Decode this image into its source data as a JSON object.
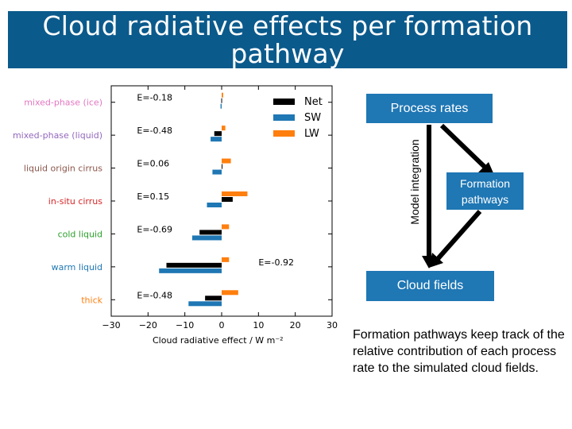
{
  "slide": {
    "title_line1": "Cloud radiative effects per formation",
    "title_line2": "pathway"
  },
  "diagram": {
    "process_rates": "Process rates",
    "formation_line1": "Formation",
    "formation_line2": "pathways",
    "cloud_fields": "Cloud fields",
    "model_integration": "Model integration",
    "description": "Formation pathways keep track of the relative contribution of each process rate to the simulated cloud fields."
  },
  "colors": {
    "title_bg": "#0b5a8c",
    "box_bg": "#1f77b4",
    "net": "#000000",
    "sw": "#1f77b4",
    "lw": "#ff7f0e"
  },
  "chart_data": {
    "type": "bar",
    "orientation": "horizontal",
    "xlabel": "Cloud radiative effect / W m⁻²",
    "xlim": [
      -30,
      30
    ],
    "xticks": [
      "−30",
      "−20",
      "−10",
      "0",
      "10",
      "20",
      "30"
    ],
    "xtick_values": [
      -30,
      -20,
      -10,
      0,
      10,
      20,
      30
    ],
    "categories": [
      "mixed-phase (ice)",
      "mixed-phase (liquid)",
      "liquid origin cirrus",
      "in-situ cirrus",
      "cold liquid",
      "warm liquid",
      "thick"
    ],
    "category_colors": [
      "#e377c2",
      "#9467bd",
      "#8c564b",
      "#d62728",
      "#2ca02c",
      "#1f77b4",
      "#ff7f0e"
    ],
    "annotations": [
      "E=-0.18",
      "E=-0.48",
      "E=0.06",
      "E=0.15",
      "E=-0.69",
      "E=-0.92",
      "E=-0.48"
    ],
    "series": [
      {
        "name": "Net",
        "color": "#000000",
        "values": [
          -0.1,
          -2.0,
          0.0,
          3.0,
          -6.0,
          -15.0,
          -4.5
        ]
      },
      {
        "name": "SW",
        "color": "#1f77b4",
        "values": [
          -0.3,
          -3.0,
          -2.5,
          -4.0,
          -8.0,
          -17.0,
          -9.0
        ]
      },
      {
        "name": "LW",
        "color": "#ff7f0e",
        "values": [
          0.4,
          1.0,
          2.5,
          7.0,
          2.0,
          2.0,
          4.5
        ]
      }
    ],
    "legend": [
      "Net",
      "SW",
      "LW"
    ],
    "legend_position": "top-right",
    "grid": false
  }
}
